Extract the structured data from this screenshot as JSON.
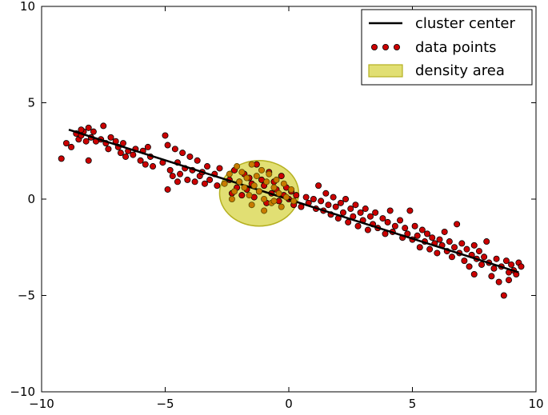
{
  "chart_data": {
    "type": "scatter",
    "title": "",
    "xlabel": "",
    "ylabel": "",
    "xlim": [
      -10,
      10
    ],
    "ylim": [
      -10,
      10
    ],
    "xticks": [
      -10,
      -5,
      0,
      5,
      10
    ],
    "yticks": [
      -10,
      -5,
      0,
      5,
      10
    ],
    "xtick_labels": [
      "−10",
      "−5",
      "0",
      "5",
      "10"
    ],
    "ytick_labels": [
      "−10",
      "−5",
      "0",
      "5",
      "10"
    ],
    "grid": false,
    "legend_position": "top-right",
    "series": [
      {
        "name": "cluster center",
        "kind": "line",
        "color": "#000000",
        "points": [
          [
            -8.9,
            3.6
          ],
          [
            9.3,
            -3.8
          ]
        ]
      },
      {
        "name": "data points",
        "kind": "scatter",
        "color": "#cc0000",
        "edge_color": "#000000",
        "points": [
          [
            -9.2,
            2.1
          ],
          [
            -9.0,
            2.9
          ],
          [
            -8.8,
            2.7
          ],
          [
            -8.6,
            3.4
          ],
          [
            -8.5,
            3.1
          ],
          [
            -8.4,
            3.3
          ],
          [
            -8.3,
            3.5
          ],
          [
            -8.2,
            3.0
          ],
          [
            -8.1,
            3.7
          ],
          [
            -8.0,
            3.2
          ],
          [
            -7.9,
            3.5
          ],
          [
            -7.8,
            3.0
          ],
          [
            -8.1,
            2.0
          ],
          [
            -7.6,
            3.1
          ],
          [
            -7.5,
            3.8
          ],
          [
            -7.4,
            2.9
          ],
          [
            -7.3,
            2.6
          ],
          [
            -7.2,
            3.2
          ],
          [
            -7.0,
            3.0
          ],
          [
            -6.9,
            2.7
          ],
          [
            -6.8,
            2.4
          ],
          [
            -6.7,
            2.9
          ],
          [
            -6.6,
            2.2
          ],
          [
            -6.5,
            2.5
          ],
          [
            -6.3,
            2.3
          ],
          [
            -6.2,
            2.6
          ],
          [
            -6.0,
            2.0
          ],
          [
            -5.9,
            2.5
          ],
          [
            -5.8,
            1.8
          ],
          [
            -5.7,
            2.7
          ],
          [
            -5.6,
            2.2
          ],
          [
            -5.5,
            1.7
          ],
          [
            -5.1,
            1.9
          ],
          [
            -5.0,
            3.3
          ],
          [
            -4.9,
            2.8
          ],
          [
            -4.8,
            1.5
          ],
          [
            -4.7,
            1.2
          ],
          [
            -4.6,
            2.6
          ],
          [
            -4.5,
            1.9
          ],
          [
            -4.4,
            1.3
          ],
          [
            -4.3,
            2.4
          ],
          [
            -4.2,
            1.6
          ],
          [
            -4.1,
            1.0
          ],
          [
            -4.0,
            2.2
          ],
          [
            -3.9,
            1.5
          ],
          [
            -3.8,
            0.9
          ],
          [
            -3.7,
            2.0
          ],
          [
            -3.6,
            1.2
          ],
          [
            -3.5,
            1.4
          ],
          [
            -3.4,
            0.8
          ],
          [
            -3.3,
            1.7
          ],
          [
            -3.2,
            1.0
          ],
          [
            -3.0,
            1.3
          ],
          [
            -2.9,
            0.7
          ],
          [
            -2.8,
            1.6
          ],
          [
            -4.9,
            0.5
          ],
          [
            -4.5,
            0.9
          ],
          [
            -2.4,
            1.0
          ],
          [
            -2.3,
            0.3
          ],
          [
            -2.2,
            1.5
          ],
          [
            -2.1,
            0.6
          ],
          [
            -2.0,
            0.9
          ],
          [
            -1.9,
            0.2
          ],
          [
            -1.8,
            1.3
          ],
          [
            -1.7,
            0.5
          ],
          [
            -1.6,
            1.1
          ],
          [
            -1.5,
            0.8
          ],
          [
            -1.4,
            0.1
          ],
          [
            -1.3,
            1.8
          ],
          [
            -1.2,
            0.4
          ],
          [
            -1.1,
            1.0
          ],
          [
            -1.0,
            0.7
          ],
          [
            -0.9,
            -0.2
          ],
          [
            -0.8,
            1.4
          ],
          [
            -0.7,
            0.3
          ],
          [
            -0.6,
            0.9
          ],
          [
            -0.5,
            0.5
          ],
          [
            -0.4,
            -0.1
          ],
          [
            -0.3,
            1.2
          ],
          [
            -0.2,
            0.2
          ],
          [
            -0.1,
            0.6
          ],
          [
            0.0,
            0.0
          ],
          [
            0.1,
            0.4
          ],
          [
            0.2,
            -0.3
          ],
          [
            0.3,
            0.2
          ],
          [
            0.5,
            -0.4
          ],
          [
            0.7,
            0.1
          ],
          [
            0.8,
            -0.2
          ],
          [
            1.0,
            0.0
          ],
          [
            1.1,
            -0.5
          ],
          [
            1.2,
            0.7
          ],
          [
            1.3,
            -0.1
          ],
          [
            1.4,
            -0.6
          ],
          [
            1.5,
            0.3
          ],
          [
            1.6,
            -0.3
          ],
          [
            1.7,
            -0.8
          ],
          [
            1.8,
            0.1
          ],
          [
            1.9,
            -0.4
          ],
          [
            2.0,
            -1.0
          ],
          [
            2.1,
            -0.2
          ],
          [
            2.2,
            -0.7
          ],
          [
            2.3,
            0.0
          ],
          [
            2.4,
            -1.2
          ],
          [
            2.5,
            -0.5
          ],
          [
            2.6,
            -0.9
          ],
          [
            2.7,
            -0.3
          ],
          [
            2.8,
            -1.4
          ],
          [
            2.9,
            -0.7
          ],
          [
            3.0,
            -1.1
          ],
          [
            3.1,
            -0.5
          ],
          [
            3.2,
            -1.6
          ],
          [
            3.3,
            -0.9
          ],
          [
            3.4,
            -1.3
          ],
          [
            3.5,
            -0.7
          ],
          [
            3.6,
            -1.5
          ],
          [
            3.8,
            -1.0
          ],
          [
            3.9,
            -1.8
          ],
          [
            4.0,
            -1.2
          ],
          [
            4.1,
            -0.6
          ],
          [
            4.2,
            -1.7
          ],
          [
            4.3,
            -1.4
          ],
          [
            4.5,
            -1.1
          ],
          [
            4.6,
            -2.0
          ],
          [
            4.7,
            -1.5
          ],
          [
            4.8,
            -1.8
          ],
          [
            4.9,
            -0.6
          ],
          [
            5.0,
            -2.1
          ],
          [
            5.1,
            -1.4
          ],
          [
            5.2,
            -1.9
          ],
          [
            5.3,
            -2.5
          ],
          [
            5.4,
            -1.6
          ],
          [
            5.5,
            -2.2
          ],
          [
            5.6,
            -1.8
          ],
          [
            5.7,
            -2.6
          ],
          [
            5.8,
            -2.0
          ],
          [
            5.9,
            -2.3
          ],
          [
            6.0,
            -2.8
          ],
          [
            6.1,
            -2.1
          ],
          [
            6.2,
            -2.4
          ],
          [
            6.3,
            -1.7
          ],
          [
            6.4,
            -2.7
          ],
          [
            6.5,
            -2.2
          ],
          [
            6.6,
            -3.0
          ],
          [
            6.7,
            -2.5
          ],
          [
            6.8,
            -1.3
          ],
          [
            6.9,
            -2.8
          ],
          [
            7.0,
            -2.3
          ],
          [
            7.1,
            -3.2
          ],
          [
            7.2,
            -2.6
          ],
          [
            7.3,
            -3.5
          ],
          [
            7.4,
            -2.9
          ],
          [
            7.5,
            -2.4
          ],
          [
            7.6,
            -3.1
          ],
          [
            7.7,
            -2.7
          ],
          [
            7.8,
            -3.4
          ],
          [
            7.9,
            -3.0
          ],
          [
            8.0,
            -2.2
          ],
          [
            8.1,
            -3.3
          ],
          [
            8.2,
            -4.0
          ],
          [
            8.3,
            -3.6
          ],
          [
            8.4,
            -3.1
          ],
          [
            8.5,
            -4.3
          ],
          [
            8.6,
            -3.5
          ],
          [
            8.7,
            -5.0
          ],
          [
            8.8,
            -3.2
          ],
          [
            8.9,
            -3.8
          ],
          [
            9.0,
            -3.4
          ],
          [
            9.1,
            -3.7
          ],
          [
            9.2,
            -3.9
          ],
          [
            9.3,
            -3.3
          ],
          [
            9.4,
            -3.5
          ],
          [
            7.5,
            -3.9
          ],
          [
            8.9,
            -4.2
          ],
          [
            -8.4,
            3.6
          ]
        ]
      },
      {
        "name": "density area",
        "kind": "ellipse",
        "fill_color": "#c8c400",
        "fill_opacity": 0.55,
        "edge_color": "#b5b020",
        "center": [
          -1.2,
          0.3
        ],
        "radius_x": 1.6,
        "radius_y": 1.7
      }
    ],
    "density_points": [
      [
        -2.6,
        0.8
      ],
      [
        -2.4,
        1.3
      ],
      [
        -2.2,
        0.4
      ],
      [
        -2.1,
        1.7
      ],
      [
        -2.0,
        0.9
      ],
      [
        -1.9,
        1.4
      ],
      [
        -1.8,
        0.6
      ],
      [
        -1.7,
        1.1
      ],
      [
        -1.6,
        0.2
      ],
      [
        -1.5,
        1.8
      ],
      [
        -1.4,
        0.7
      ],
      [
        -1.3,
        1.2
      ],
      [
        -1.2,
        0.4
      ],
      [
        -1.1,
        1.5
      ],
      [
        -1.0,
        0.0
      ],
      [
        -0.9,
        0.9
      ],
      [
        -0.8,
        1.3
      ],
      [
        -0.7,
        -0.2
      ],
      [
        -0.6,
        0.6
      ],
      [
        -0.5,
        1.0
      ],
      [
        -0.4,
        0.3
      ],
      [
        -0.3,
        -0.4
      ],
      [
        -0.2,
        0.8
      ],
      [
        -0.1,
        0.1
      ],
      [
        0.1,
        0.5
      ],
      [
        0.2,
        -0.1
      ],
      [
        -1.5,
        -0.3
      ],
      [
        -2.3,
        0.0
      ],
      [
        -1.0,
        -0.6
      ],
      [
        -0.6,
        -0.1
      ]
    ]
  }
}
